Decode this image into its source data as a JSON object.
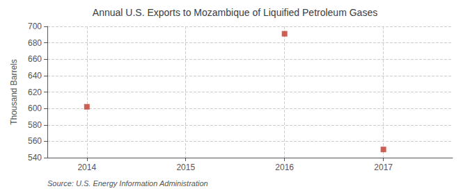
{
  "chart_data": {
    "type": "scatter",
    "title": "Annual U.S. Exports to Mozambique of Liquified Petroleum Gases",
    "ylabel": "Thousand Barrels",
    "annotation": "Source: U.S. Energy Information Administration",
    "x": [
      2014,
      2016,
      2017
    ],
    "values": [
      602,
      691,
      550
    ],
    "color": "#c0392b",
    "marker": "square",
    "xlim": [
      2013.6,
      2017.7
    ],
    "ylim": [
      540,
      700
    ],
    "xticks": [
      2014,
      2015,
      2016,
      2017
    ],
    "yticks": [
      540,
      560,
      580,
      600,
      620,
      640,
      660,
      680,
      700
    ],
    "grid": true
  }
}
